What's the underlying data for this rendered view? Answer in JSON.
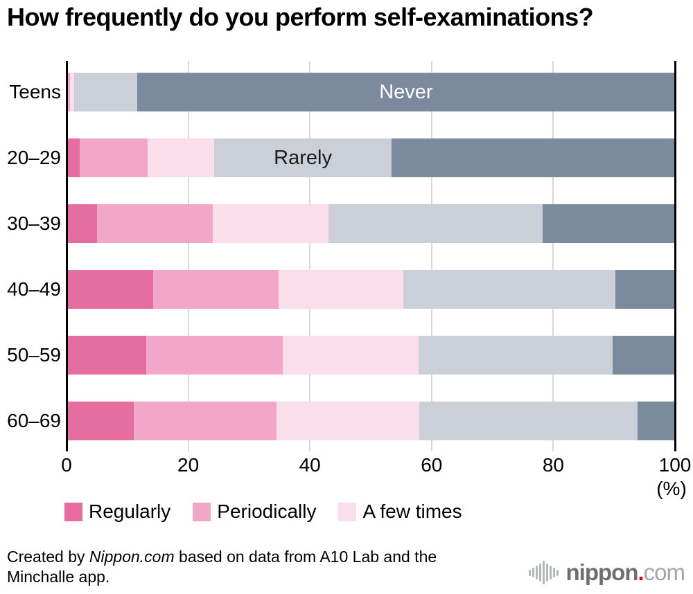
{
  "title": "How frequently do you perform self-examinations?",
  "chart_data": {
    "type": "bar",
    "orientation": "horizontal",
    "stacked": true,
    "grid": true,
    "xlim": [
      0,
      100
    ],
    "x_ticks": [
      0,
      20,
      40,
      60,
      80,
      100
    ],
    "x_unit": "(%)",
    "categories": [
      "Teens",
      "20–29",
      "30–39",
      "40–49",
      "50–59",
      "60–69"
    ],
    "series": [
      {
        "name": "Regularly",
        "color": "#e66da0",
        "values": [
          0,
          2.2,
          5.0,
          14.2,
          13.1,
          11.1
        ]
      },
      {
        "name": "Periodically",
        "color": "#f2a6c8",
        "values": [
          0.6,
          11.1,
          19.0,
          20.7,
          22.4,
          23.4
        ]
      },
      {
        "name": "A few times",
        "color": "#fadee9",
        "values": [
          0.7,
          11.0,
          19.1,
          20.4,
          22.4,
          23.5
        ]
      },
      {
        "name": "Rarely",
        "color": "#cacfd8",
        "values": [
          10.3,
          29.1,
          35.2,
          34.9,
          31.8,
          35.8
        ]
      },
      {
        "name": "Never",
        "color": "#7c8a9e",
        "values": [
          88.4,
          46.6,
          21.7,
          9.8,
          10.3,
          6.2
        ]
      }
    ],
    "bar_labels": [
      {
        "row": 0,
        "series": "Never",
        "text": "Never",
        "color": "#ffffff"
      },
      {
        "row": 1,
        "series": "Rarely",
        "text": "Rarely",
        "color": "#1a1a1a"
      }
    ],
    "legend": [
      "Regularly",
      "Periodically",
      "A few times"
    ],
    "legend_position": "bottom",
    "axis_color": "#000000",
    "gridline_color": "#d9d9d9"
  },
  "footer": {
    "credit_prefix": "Created by ",
    "credit_source": "Nippon.com",
    "credit_suffix": " based on data from A10 Lab and the Minchalle app."
  },
  "logo": {
    "name": "nippon",
    "dot": ".",
    "tld": "com"
  }
}
